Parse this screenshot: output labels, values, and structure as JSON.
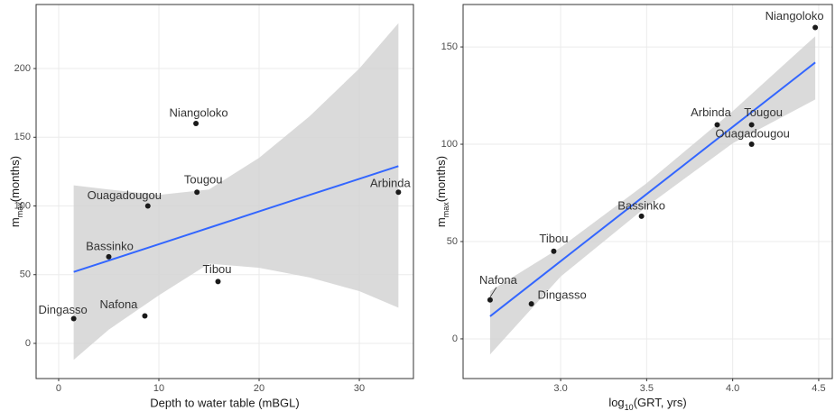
{
  "chart_data": [
    {
      "type": "scatter",
      "xlabel": "Depth to water table (mBGL)",
      "ylabel": [
        "m",
        "max",
        "(months)"
      ],
      "labels": [
        "Dingasso",
        "Nafona",
        "Bassinko",
        "Ouagadougou",
        "Tibou",
        "Tougou",
        "Niangoloko",
        "Arbinda"
      ],
      "x": [
        1.5,
        8.6,
        5.0,
        8.9,
        15.9,
        13.8,
        13.7,
        33.9
      ],
      "values": [
        18,
        20,
        63,
        100,
        45,
        110,
        160,
        110
      ],
      "color": "#1a1a1a",
      "fit": {
        "x": [
          1.5,
          5,
          10,
          15,
          20,
          25,
          30,
          33.9
        ],
        "y": [
          52,
          60.3,
          72.2,
          84.1,
          96,
          107.9,
          119.7,
          129
        ],
        "upper": [
          115,
          112,
          108,
          112,
          135,
          165,
          200,
          233
        ],
        "lower": [
          -12,
          10,
          35,
          58,
          55,
          48,
          38,
          26
        ],
        "color": "#3366ff",
        "band_color": "#d3d3d3"
      },
      "xlim": [
        -2.25,
        35.4
      ],
      "ylim": [
        -25.6,
        246.6
      ],
      "xticks": [
        0,
        10,
        20,
        30
      ],
      "yticks": [
        0,
        50,
        100,
        150,
        200
      ],
      "grid": true
    },
    {
      "type": "scatter",
      "xlabel": [
        "log",
        "10",
        "(GRT, yrs)"
      ],
      "ylabel": [
        "m",
        "max",
        "(months)"
      ],
      "labels": [
        "Nafona",
        "Dingasso",
        "Tibou",
        "Bassinko",
        "Arbinda",
        "Tougou",
        "Ouagadougou",
        "Niangoloko"
      ],
      "x": [
        2.59,
        2.83,
        2.96,
        3.47,
        3.91,
        4.11,
        4.11,
        4.48
      ],
      "values": [
        20,
        18,
        45,
        63,
        110,
        110,
        100,
        160
      ],
      "color": "#1a1a1a",
      "fit": {
        "x": [
          2.59,
          3.0,
          3.5,
          4.0,
          4.48
        ],
        "y": [
          11.6,
          39.9,
          74.4,
          108.9,
          142
        ],
        "upper": [
          24.5,
          47,
          80,
          117,
          155.5
        ],
        "lower": [
          -8,
          32,
          68,
          100.5,
          123
        ],
        "color": "#3366ff",
        "band_color": "#d3d3d3"
      },
      "xlim": [
        2.433,
        4.579
      ],
      "ylim": [
        -20.4,
        171.8
      ],
      "xticks": [
        {
          "value": 3,
          "label": "3.0"
        },
        {
          "value": 3.5,
          "label": "3.5"
        },
        {
          "value": 4,
          "label": "4.0"
        },
        {
          "value": 4.5,
          "label": "4.5"
        }
      ],
      "yticks": [
        0,
        50,
        100,
        150
      ],
      "grid": true
    }
  ]
}
